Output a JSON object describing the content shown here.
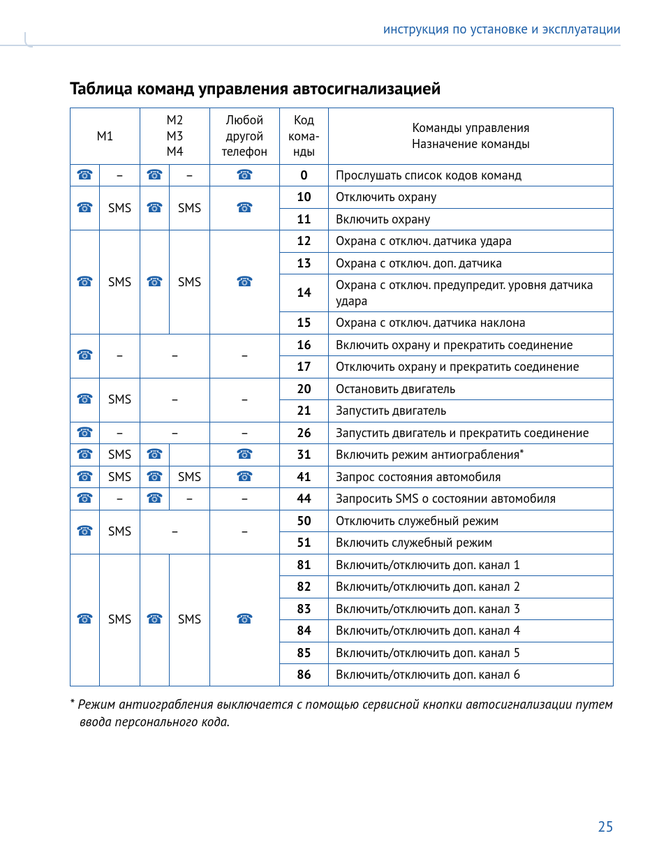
{
  "header": "инструкция по установке и эксплуатации",
  "title": "Таблица команд управления автосигнализацией",
  "page_number": "25",
  "icons": {
    "phone": "☎",
    "dash": "–"
  },
  "colors": {
    "accent": "#1c5fa8",
    "rule": "#c9d6e5",
    "text": "#000000",
    "background": "#ffffff"
  },
  "thead": {
    "m1": "M1",
    "m234_l1": "M2",
    "m234_l2": "M3",
    "m234_l3": "M4",
    "any_l1": "Любой",
    "any_l2": "другой",
    "any_l3": "телефон",
    "code_l1": "Код",
    "code_l2": "кома-",
    "code_l3": "нды",
    "cmd_l1": "Команды управления",
    "cmd_l2": "Назначение команды"
  },
  "groups": [
    {
      "m1_phone": true,
      "m1_sms": "–",
      "m2_phone": true,
      "m2_sms": "–",
      "any": "phone",
      "rows": [
        {
          "code": "0",
          "desc": "Прослушать список кодов команд"
        }
      ]
    },
    {
      "m1_phone": true,
      "m1_sms": "SMS",
      "m2_phone": true,
      "m2_sms": "SMS",
      "any": "phone",
      "rows": [
        {
          "code": "10",
          "desc": "Отключить охрану"
        },
        {
          "code": "11",
          "desc": "Включить охрану"
        }
      ]
    },
    {
      "m1_phone": true,
      "m1_sms": "SMS",
      "m2_phone": true,
      "m2_sms": "SMS",
      "any": "phone",
      "rows": [
        {
          "code": "12",
          "desc": "Охрана с отключ. датчика  удара"
        },
        {
          "code": "13",
          "desc": "Охрана с отключ.  доп.  датчика"
        },
        {
          "code": "14",
          "desc": "Охрана с отключ. предупредит. уровня датчика удара"
        },
        {
          "code": "15",
          "desc": "Охрана с отключ.  датчика  наклона"
        }
      ]
    },
    {
      "m1_phone": true,
      "m1_sms": "–",
      "m2_merged": "–",
      "any": "–",
      "rows": [
        {
          "code": "16",
          "desc": "Включить охрану и прекратить соединение"
        },
        {
          "code": "17",
          "desc": "Отключить охрану и прекратить соединение"
        }
      ]
    },
    {
      "m1_phone": true,
      "m1_sms": "SMS",
      "m2_merged": "–",
      "any": "–",
      "rows": [
        {
          "code": "20",
          "desc": "Остановить двигатель"
        },
        {
          "code": "21",
          "desc": "Запустить двигатель"
        }
      ]
    },
    {
      "m1_phone": true,
      "m1_sms": "–",
      "m2_merged": "–",
      "any": "–",
      "rows": [
        {
          "code": "26",
          "desc": "Запустить двигатель и прекратить соединение"
        }
      ]
    },
    {
      "m1_phone": true,
      "m1_sms": "SMS",
      "m2_phone": true,
      "m2_sms": "",
      "any": "phone",
      "rows": [
        {
          "code": "31",
          "desc": "Включить режим антиограбления*"
        }
      ]
    },
    {
      "m1_phone": true,
      "m1_sms": "SMS",
      "m2_phone": true,
      "m2_sms": "SMS",
      "any": "phone",
      "rows": [
        {
          "code": "41",
          "desc": "Запрос состояния автомобиля"
        }
      ]
    },
    {
      "m1_phone": true,
      "m1_sms": "–",
      "m2_phone": true,
      "m2_sms": "–",
      "any": "–",
      "rows": [
        {
          "code": "44",
          "desc": "Запросить SMS о состоянии автомобиля"
        }
      ]
    },
    {
      "m1_phone": true,
      "m1_sms": "SMS",
      "m2_merged": "–",
      "any": "–",
      "rows": [
        {
          "code": "50",
          "desc": "Отключить служебный режим"
        },
        {
          "code": "51",
          "desc": "Включить служебный режим"
        }
      ]
    },
    {
      "m1_phone": true,
      "m1_sms": "SMS",
      "m2_phone": true,
      "m2_sms": "SMS",
      "any": "phone",
      "rows": [
        {
          "code": "81",
          "desc": "Включить/отключить  доп. канал 1"
        },
        {
          "code": "82",
          "desc": "Включить/отключить  доп. канал 2"
        },
        {
          "code": "83",
          "desc": "Включить/отключить  доп. канал 3"
        },
        {
          "code": "84",
          "desc": "Включить/отключить  доп. канал 4"
        },
        {
          "code": "85",
          "desc": "Включить/отключить  доп. канал 5"
        },
        {
          "code": "86",
          "desc": "Включить/отключить  доп. канал 6"
        }
      ]
    }
  ],
  "footnote": "* Режим антиограбления выключается с помощью сервисной кнопки автосигнализации путем ввода персонального кода."
}
